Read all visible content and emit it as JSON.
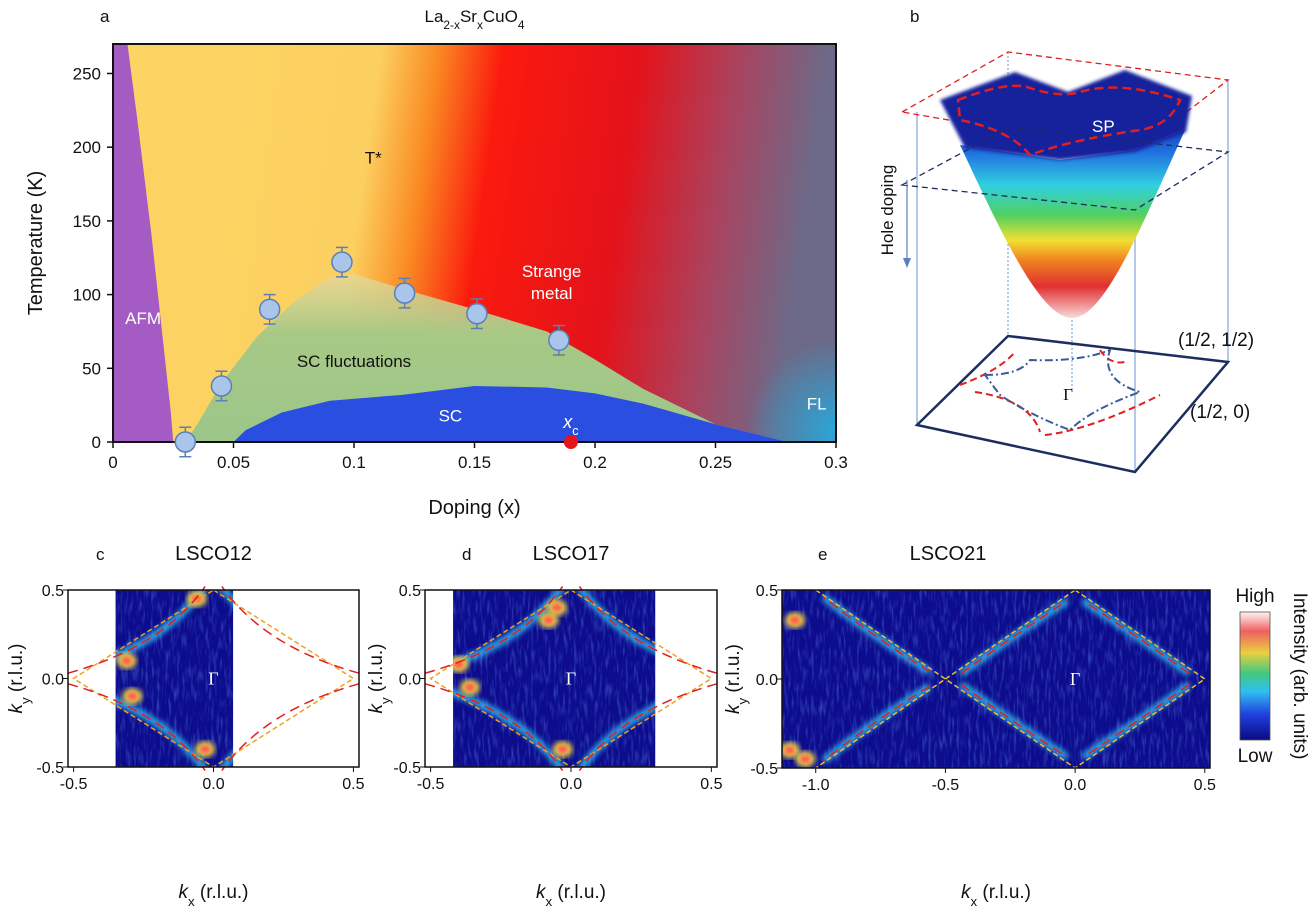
{
  "chart_data": [
    {
      "type": "scatter",
      "panel": "a",
      "title_parts": [
        "La",
        "2-x",
        "Sr",
        "x",
        "CuO",
        "4"
      ],
      "xlabel": "Doping (x)",
      "ylabel": "Temperature (K)",
      "xlim": [
        0,
        0.3
      ],
      "xticks": [
        0,
        0.05,
        0.1,
        0.15,
        0.2,
        0.25,
        0.3
      ],
      "ylim": [
        0,
        270
      ],
      "yticks": [
        0,
        50,
        100,
        150,
        200,
        250
      ],
      "series": [
        {
          "color": "#a9c6ea",
          "x": [
            0.03,
            0.045,
            0.065,
            0.095,
            0.121,
            0.151,
            0.185
          ],
          "values": [
            0,
            38,
            90,
            122,
            101,
            87,
            69
          ],
          "errors": [
            10,
            10,
            10,
            10,
            10,
            10,
            10
          ]
        }
      ],
      "xc": {
        "label_parts": [
          "x",
          "c"
        ],
        "x": 0.19,
        "color": "#e8141b"
      },
      "annotations": [
        "AFM",
        "T*",
        "SC fluctuations",
        [
          "Strange",
          "metal"
        ],
        "SC",
        "FL"
      ]
    },
    {
      "type": "image",
      "panel": "c",
      "title": "LSCO12",
      "xlabel_parts": [
        "k",
        "x",
        " (r.l.u.)"
      ],
      "ylabel_parts": [
        "k",
        "y",
        " (r.l.u.)"
      ],
      "xlim": [
        -0.52,
        0.52
      ],
      "xticks": [
        -0.5,
        {
          "value": 0,
          "label": "0.0"
        },
        0.5
      ],
      "ylim": [
        -0.5,
        0.5
      ],
      "yticks": [
        -0.5,
        {
          "value": 0,
          "label": "0.0"
        },
        0.5
      ],
      "gamma": "Γ"
    },
    {
      "type": "image",
      "panel": "d",
      "title": "LSCO17",
      "xlabel_parts": [
        "k",
        "x",
        " (r.l.u.)"
      ],
      "ylabel_parts": [
        "k",
        "y",
        " (r.l.u.)"
      ],
      "xlim": [
        -0.52,
        0.52
      ],
      "xticks": [
        -0.5,
        {
          "value": 0,
          "label": "0.0"
        },
        0.5
      ],
      "ylim": [
        -0.5,
        0.5
      ],
      "yticks": [
        -0.5,
        {
          "value": 0,
          "label": "0.0"
        },
        0.5
      ],
      "gamma": "Γ"
    },
    {
      "type": "image",
      "panel": "e",
      "title": "LSCO21",
      "xlabel_parts": [
        "k",
        "x",
        " (r.l.u.)"
      ],
      "ylabel_parts": [
        "k",
        "y",
        " (r.l.u.)"
      ],
      "xlim": [
        -1.13,
        0.52
      ],
      "xticks": [
        {
          "value": -1,
          "label": "-1.0"
        },
        -0.5,
        {
          "value": 0,
          "label": "0.0"
        },
        0.5
      ],
      "ylim": [
        -0.5,
        0.5
      ],
      "yticks": [
        -0.5,
        {
          "value": 0,
          "label": "0.0"
        },
        0.5
      ],
      "gamma": "Γ",
      "colorbar": {
        "high": "High",
        "low": "Low",
        "label": "Intensity (arb. units)"
      }
    }
  ],
  "diagram": {
    "panel": "b",
    "sp": "SP",
    "hole_doping": "Hole doping",
    "gamma": "Γ",
    "corner_1": "(1/2, 1/2)",
    "corner_2": "(1/2, 0)"
  }
}
